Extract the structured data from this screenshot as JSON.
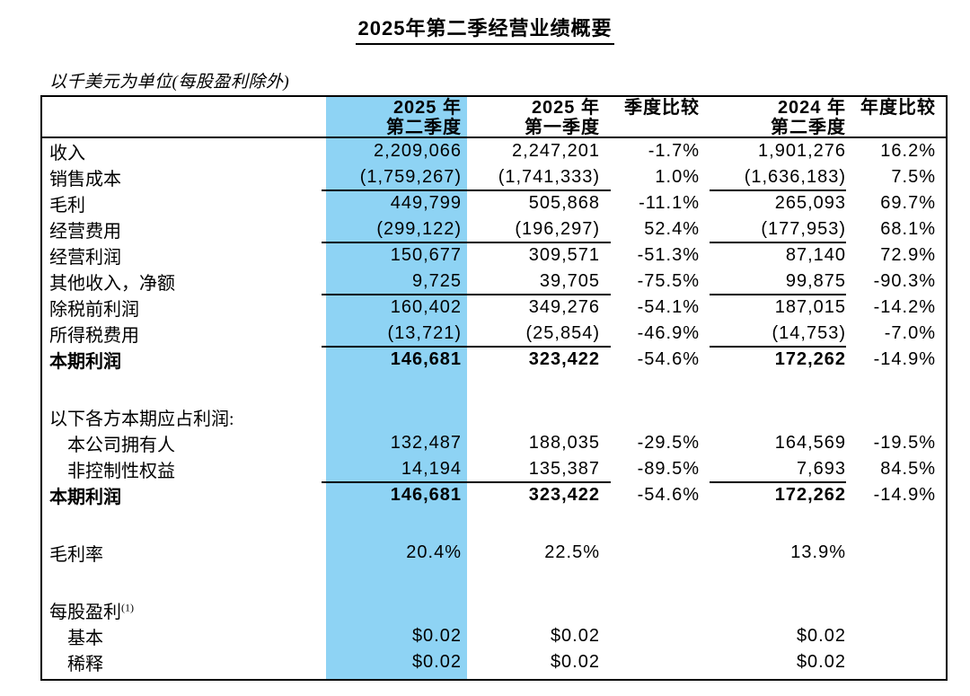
{
  "page": {
    "title": "2025年第二季经营业绩概要",
    "subtitle": "以千美元为单位(每股盈利除外)"
  },
  "colors": {
    "highlight_column": "#8ED3F4",
    "border": "#000000",
    "text": "#000000"
  },
  "table": {
    "header": {
      "c1": [
        "2025 年",
        "第二季度"
      ],
      "c2": [
        "2025 年",
        "第一季度"
      ],
      "c3": "季度比较",
      "c4": [
        "2024 年",
        "第二季度"
      ],
      "c5": "年度比较"
    },
    "rows": [
      {
        "label": "收入",
        "values": [
          "2,209,066",
          "2,247,201",
          "-1.7%",
          "1,901,276",
          "16.2%"
        ]
      },
      {
        "label": "销售成本",
        "values": [
          "(1,759,267)",
          "(1,741,333)",
          "1.0%",
          "(1,636,183)",
          "7.5%"
        ],
        "underline": true
      },
      {
        "label": "毛利",
        "values": [
          "449,799",
          "505,868",
          "-11.1%",
          "265,093",
          "69.7%"
        ]
      },
      {
        "label": "经营费用",
        "values": [
          "(299,122)",
          "(196,297)",
          "52.4%",
          "(177,953)",
          "68.1%"
        ],
        "underline": true
      },
      {
        "label": "经营利润",
        "values": [
          "150,677",
          "309,571",
          "-51.3%",
          "87,140",
          "72.9%"
        ]
      },
      {
        "label": "其他收入，净额",
        "values": [
          "9,725",
          "39,705",
          "-75.5%",
          "99,875",
          "-90.3%"
        ],
        "underline": true
      },
      {
        "label": "除税前利润",
        "values": [
          "160,402",
          "349,276",
          "-54.1%",
          "187,015",
          "-14.2%"
        ]
      },
      {
        "label": "所得税费用",
        "values": [
          "(13,721)",
          "(25,854)",
          "-46.9%",
          "(14,753)",
          "-7.0%"
        ],
        "underline": true
      },
      {
        "label": "本期利润",
        "values": [
          "146,681",
          "323,422",
          "-54.6%",
          "172,262",
          "-14.9%"
        ],
        "bold": true
      },
      {
        "blank": true
      },
      {
        "label": "以下各方本期应占利润:",
        "values": [
          "",
          "",
          "",
          "",
          ""
        ]
      },
      {
        "label": "本公司拥有人",
        "indent": true,
        "values": [
          "132,487",
          "188,035",
          "-29.5%",
          "164,569",
          "-19.5%"
        ]
      },
      {
        "label": "非控制性权益",
        "indent": true,
        "values": [
          "14,194",
          "135,387",
          "-89.5%",
          "7,693",
          "84.5%"
        ],
        "underline": true
      },
      {
        "label": "本期利润",
        "values": [
          "146,681",
          "323,422",
          "-54.6%",
          "172,262",
          "-14.9%"
        ],
        "bold": true
      },
      {
        "blank": true
      },
      {
        "label": "毛利率",
        "values": [
          "20.4%",
          "22.5%",
          "",
          "13.9%",
          ""
        ]
      },
      {
        "blank": true
      },
      {
        "label": "每股盈利",
        "label_sup": "(1)",
        "values": [
          "",
          "",
          "",
          "",
          ""
        ]
      },
      {
        "label": "基本",
        "indent": true,
        "values": [
          "$0.02",
          "$0.02",
          "",
          "$0.02",
          ""
        ]
      },
      {
        "label": "稀释",
        "indent": true,
        "values": [
          "$0.02",
          "$0.02",
          "",
          "$0.02",
          ""
        ]
      }
    ]
  }
}
